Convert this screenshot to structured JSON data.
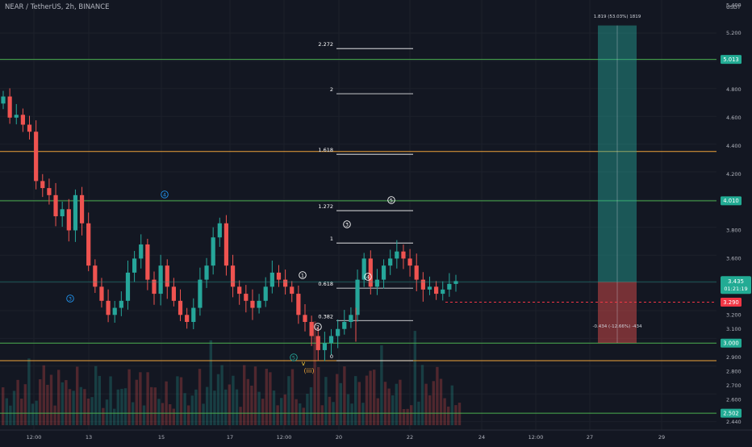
{
  "header": {
    "symbol_line": "NEAR / TetherUS, 2h, BINANCE"
  },
  "price_axis": {
    "currency_label": "USDT",
    "ticks": [
      "5.400",
      "5.200",
      "4.800",
      "4.600",
      "4.400",
      "4.200",
      "3.800",
      "3.600",
      "3.200",
      "3.100",
      "2.900",
      "2.800",
      "2.700",
      "2.600",
      "2.500",
      "2.440"
    ],
    "current_price": "3.435",
    "countdown": "01:21:19",
    "badges": [
      {
        "label": "5.013",
        "color": "#22ab94",
        "text_color": "#ffffff"
      },
      {
        "label": "4.010",
        "color": "#22ab94",
        "text_color": "#ffffff"
      },
      {
        "label": "3.290",
        "color": "#f23645",
        "text_color": "#ffffff"
      },
      {
        "label": "3.000",
        "color": "#22ab94",
        "text_color": "#ffffff"
      },
      {
        "label": "2.502",
        "color": "#22ab94",
        "text_color": "#ffffff"
      }
    ]
  },
  "time_axis": {
    "ticks": [
      "12:00",
      "13",
      "15",
      "17",
      "12:00",
      "20",
      "22",
      "24",
      "12:00",
      "27",
      "29"
    ]
  },
  "colors": {
    "background": "#131722",
    "up": "#26a69a",
    "down": "#ef5350",
    "green_line": "#4caf50",
    "orange_line": "#f0a43a",
    "fib_line": "#ffffff"
  },
  "fib_levels": [
    "2.272",
    "2",
    "1.618",
    "1.272",
    "1",
    "0.618",
    "0.382",
    "0"
  ],
  "wave_labels": [
    {
      "text": "4",
      "color": "#2196f3"
    },
    {
      "text": "3",
      "color": "#2196f3"
    },
    {
      "text": "5",
      "color": "#26a69a"
    },
    {
      "text": "1",
      "color": "#ffffff"
    },
    {
      "text": "2",
      "color": "#ffffff"
    },
    {
      "text": "3",
      "color": "#ffffff"
    },
    {
      "text": "4",
      "color": "#ffffff"
    },
    {
      "text": "5",
      "color": "#ffffff"
    },
    {
      "text": "v",
      "color": "#f0c43a"
    },
    {
      "text": "(iii)",
      "color": "#f0a43a"
    }
  ],
  "position_tool": {
    "target_label": "1.819 (53.03%) 1819",
    "stop_label": "-0.434 (-12.66%) -434"
  },
  "chart_data": {
    "type": "candlestick",
    "symbol": "NEAR / TetherUS",
    "interval": "2h",
    "exchange": "BINANCE",
    "x_ticks": [
      "12:00",
      "13",
      "15",
      "17",
      "12:00",
      "20",
      "22",
      "24",
      "12:00",
      "27",
      "29"
    ],
    "y_range": [
      2.44,
      5.43
    ],
    "horizontal_levels": [
      {
        "price": 5.013,
        "color": "#4caf50"
      },
      {
        "price": 4.01,
        "color": "#4caf50"
      },
      {
        "price": 3.0,
        "color": "#4caf50"
      },
      {
        "price": 2.502,
        "color": "#4caf50"
      },
      {
        "price": 4.36,
        "color": "#f0a43a"
      },
      {
        "price": 2.875,
        "color": "#f0a43a"
      }
    ],
    "fibonacci": {
      "start_price": 2.875,
      "end_price": 3.71,
      "levels": [
        {
          "ratio": 2.272,
          "price": 5.09
        },
        {
          "ratio": 2,
          "price": 4.77
        },
        {
          "ratio": 1.618,
          "price": 4.34
        },
        {
          "ratio": 1.272,
          "price": 3.94
        },
        {
          "ratio": 1,
          "price": 3.71
        },
        {
          "ratio": 0.618,
          "price": 3.39
        },
        {
          "ratio": 0.382,
          "price": 3.16
        },
        {
          "ratio": 0,
          "price": 2.875
        }
      ]
    },
    "long_position": {
      "entry": 3.435,
      "target": 5.254,
      "stop": 3.001
    },
    "current_price": 3.435,
    "dashed_level": 3.29,
    "closes_approx": [
      4.75,
      4.6,
      4.62,
      4.55,
      4.5,
      4.15,
      4.1,
      4.05,
      3.9,
      3.95,
      3.8,
      4.05,
      3.85,
      3.55,
      3.4,
      3.3,
      3.2,
      3.25,
      3.3,
      3.5,
      3.6,
      3.7,
      3.45,
      3.35,
      3.55,
      3.4,
      3.3,
      3.2,
      3.15,
      3.25,
      3.45,
      3.55,
      3.75,
      3.85,
      3.55,
      3.4,
      3.35,
      3.3,
      3.25,
      3.3,
      3.4,
      3.5,
      3.45,
      3.4,
      3.35,
      3.2,
      3.15,
      3.05,
      2.95,
      3.0,
      3.05,
      3.1,
      3.15,
      3.2,
      3.45,
      3.6,
      3.4,
      3.45,
      3.55,
      3.6,
      3.65,
      3.6,
      3.55,
      3.45,
      3.38,
      3.4,
      3.35,
      3.38,
      3.42,
      3.44
    ]
  }
}
